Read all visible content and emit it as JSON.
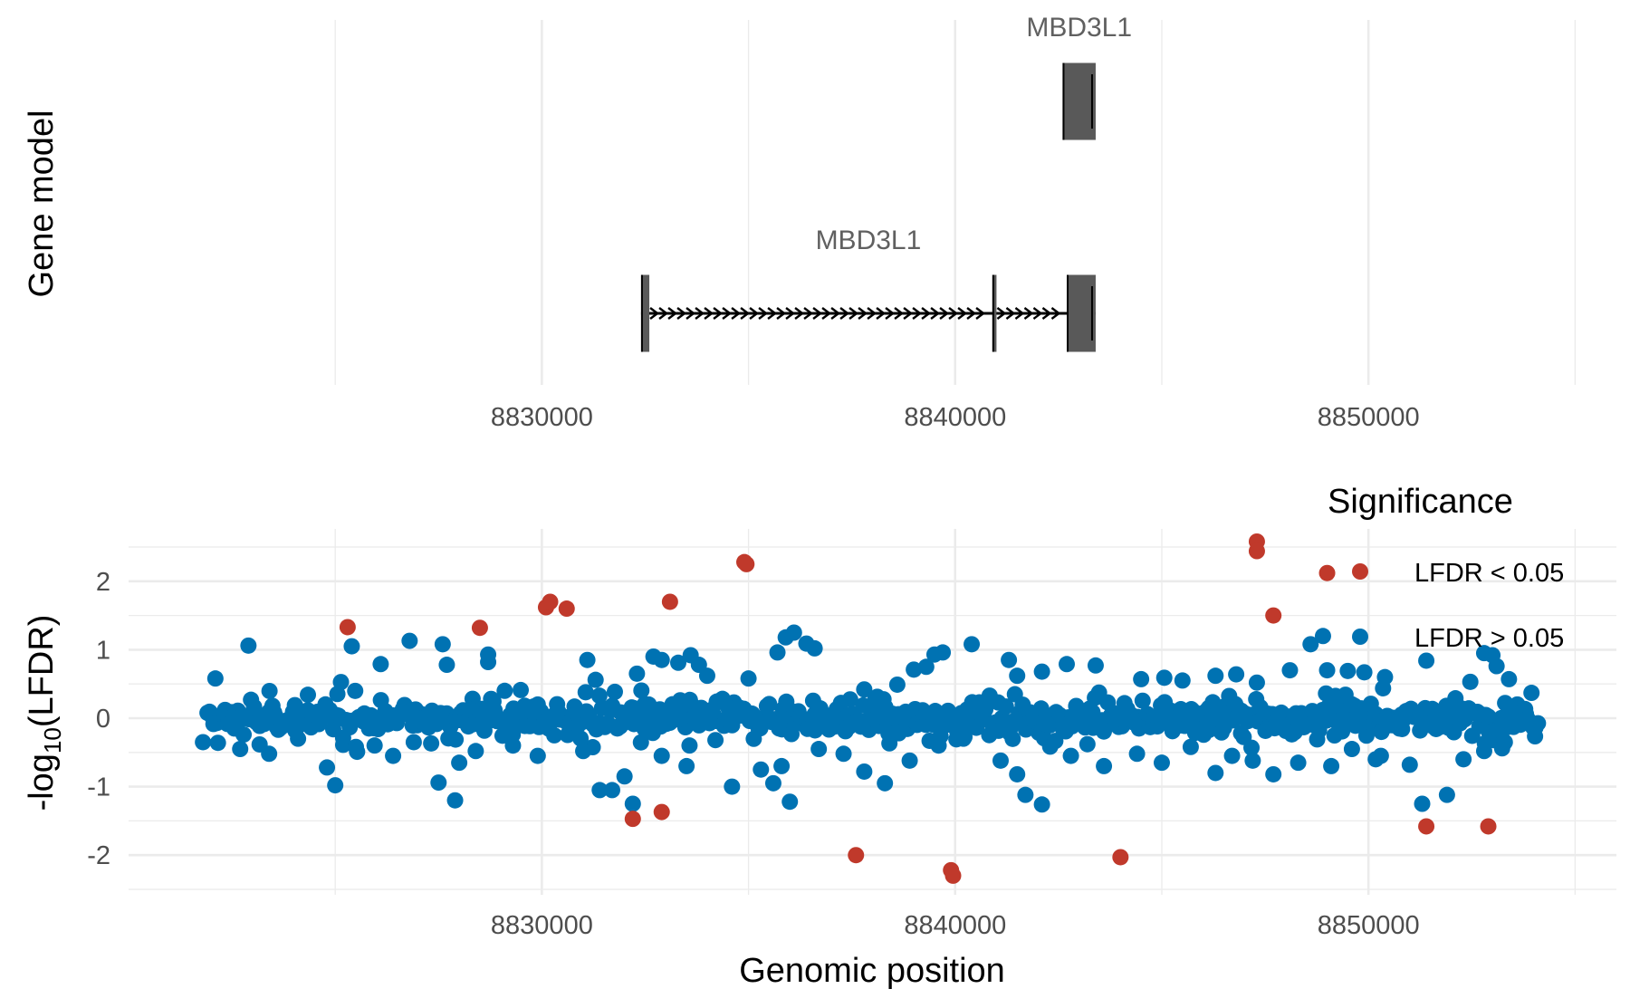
{
  "chart_data": [
    {
      "type": "gene-model",
      "ylabel": "Gene model",
      "xlim": [
        8820000,
        8856000
      ],
      "x_ticks": [
        8830000,
        8840000,
        8850000
      ],
      "x_tick_labels": [
        "8830000",
        "8840000",
        "8850000"
      ],
      "transcripts": [
        {
          "label": "MBD3L1",
          "track": 1,
          "strand": "+",
          "start": 8842600,
          "end": 8843400,
          "exons": [
            {
              "start": 8842600,
              "end": 8843400
            }
          ]
        },
        {
          "label": "MBD3L1",
          "track": 2,
          "strand": "+",
          "start": 8832400,
          "end": 8843400,
          "exons": [
            {
              "start": 8832400,
              "end": 8832600
            },
            {
              "start": 8840900,
              "end": 8841000
            },
            {
              "start": 8842700,
              "end": 8843400
            }
          ]
        }
      ],
      "colors": {
        "exon": "#595959",
        "intron": "#000000"
      }
    },
    {
      "type": "scatter",
      "xlabel": "Genomic position",
      "ylabel_main": "-log",
      "ylabel_sub": "10",
      "ylabel_tail": "(LFDR)",
      "xlim": [
        8820000,
        8856000
      ],
      "ylim": [
        -2.5,
        2.5
      ],
      "x_ticks": [
        8830000,
        8840000,
        8850000
      ],
      "x_tick_labels": [
        "8830000",
        "8840000",
        "8850000"
      ],
      "y_ticks": [
        -2,
        -1,
        0,
        1,
        2
      ],
      "y_tick_labels": [
        "-2",
        "-1",
        "0",
        "1",
        "2"
      ],
      "legend": {
        "title": "Significance",
        "position": "top-right",
        "entries": [
          {
            "label": "LFDR < 0.05",
            "color": "#C0392B"
          },
          {
            "label": "LFDR > 0.05",
            "color": "#0072B2"
          }
        ]
      },
      "series": [
        {
          "name": "LFDR < 0.05",
          "color": "#C0392B",
          "points": [
            [
              8825300,
              1.33
            ],
            [
              8828500,
              1.32
            ],
            [
              8830100,
              1.62
            ],
            [
              8830200,
              1.7
            ],
            [
              8830600,
              1.6
            ],
            [
              8833100,
              1.7
            ],
            [
              8834900,
              2.28
            ],
            [
              8834950,
              2.25
            ],
            [
              8847300,
              2.58
            ],
            [
              8847300,
              2.44
            ],
            [
              8847700,
              1.5
            ],
            [
              8849000,
              2.12
            ],
            [
              8832200,
              -1.47
            ],
            [
              8832900,
              -1.37
            ],
            [
              8837600,
              -2.0
            ],
            [
              8839900,
              -2.22
            ],
            [
              8839950,
              -2.3
            ],
            [
              8844000,
              -2.03
            ],
            [
              8851400,
              -1.58
            ],
            [
              8852900,
              -1.58
            ]
          ]
        },
        {
          "name": "LFDR > 0.05",
          "color": "#0072B2",
          "points": [
            [
              8822100,
              0.58
            ],
            [
              8822900,
              1.06
            ],
            [
              8825400,
              1.05
            ],
            [
              8826100,
              0.79
            ],
            [
              8826800,
              1.13
            ],
            [
              8827600,
              1.08
            ],
            [
              8827700,
              0.78
            ],
            [
              8828700,
              0.93
            ],
            [
              8828700,
              0.82
            ],
            [
              8829100,
              0.4
            ],
            [
              8829900,
              0.2
            ],
            [
              8831100,
              0.85
            ],
            [
              8831300,
              0.56
            ],
            [
              8832300,
              0.65
            ],
            [
              8832700,
              0.9
            ],
            [
              8832900,
              0.85
            ],
            [
              8833300,
              0.81
            ],
            [
              8833600,
              0.92
            ],
            [
              8833800,
              0.78
            ],
            [
              8834000,
              0.62
            ],
            [
              8835000,
              0.58
            ],
            [
              8835700,
              0.96
            ],
            [
              8835900,
              1.18
            ],
            [
              8836100,
              1.25
            ],
            [
              8836400,
              1.09
            ],
            [
              8836600,
              1.02
            ],
            [
              8837800,
              0.42
            ],
            [
              8838600,
              0.49
            ],
            [
              8839000,
              0.71
            ],
            [
              8839300,
              0.75
            ],
            [
              8839500,
              0.93
            ],
            [
              8839700,
              0.96
            ],
            [
              8840400,
              1.08
            ],
            [
              8841300,
              0.85
            ],
            [
              8841500,
              0.62
            ],
            [
              8842100,
              0.68
            ],
            [
              8842700,
              0.79
            ],
            [
              8843400,
              0.77
            ],
            [
              8844500,
              0.57
            ],
            [
              8845500,
              0.55
            ],
            [
              8846300,
              0.62
            ],
            [
              8846800,
              0.64
            ],
            [
              8847300,
              0.52
            ],
            [
              8848100,
              0.7
            ],
            [
              8848600,
              1.08
            ],
            [
              8848900,
              1.2
            ],
            [
              8849000,
              0.7
            ],
            [
              8849500,
              0.69
            ],
            [
              8849900,
              0.67
            ],
            [
              8850400,
              0.6
            ],
            [
              8851400,
              0.84
            ],
            [
              8852800,
              0.95
            ],
            [
              8853000,
              0.92
            ],
            [
              8853100,
              0.76
            ],
            [
              8853400,
              0.57
            ],
            [
              8821800,
              -0.35
            ],
            [
              8822700,
              -0.45
            ],
            [
              8823400,
              -0.52
            ],
            [
              8824100,
              -0.3
            ],
            [
              8824800,
              -0.72
            ],
            [
              8825000,
              -0.98
            ],
            [
              8825500,
              -0.42
            ],
            [
              8826400,
              -0.55
            ],
            [
              8826900,
              -0.35
            ],
            [
              8827500,
              -0.94
            ],
            [
              8827900,
              -1.2
            ],
            [
              8828000,
              -0.65
            ],
            [
              8828400,
              -0.48
            ],
            [
              8829300,
              -0.4
            ],
            [
              8829900,
              -0.55
            ],
            [
              8830300,
              -0.25
            ],
            [
              8831000,
              -0.48
            ],
            [
              8831400,
              -1.05
            ],
            [
              8831700,
              -1.05
            ],
            [
              8832000,
              -0.85
            ],
            [
              8832200,
              -1.25
            ],
            [
              8832900,
              -0.55
            ],
            [
              8833500,
              -0.7
            ],
            [
              8834200,
              -0.32
            ],
            [
              8834600,
              -1.0
            ],
            [
              8835300,
              -0.75
            ],
            [
              8835600,
              -0.95
            ],
            [
              8835800,
              -0.7
            ],
            [
              8836000,
              -1.22
            ],
            [
              8836700,
              -0.45
            ],
            [
              8837300,
              -0.52
            ],
            [
              8837800,
              -0.78
            ],
            [
              8838300,
              -0.95
            ],
            [
              8838900,
              -0.62
            ],
            [
              8839600,
              -0.4
            ],
            [
              8840200,
              -0.3
            ],
            [
              8841100,
              -0.62
            ],
            [
              8841500,
              -0.82
            ],
            [
              8841700,
              -1.12
            ],
            [
              8842100,
              -1.26
            ],
            [
              8842800,
              -0.55
            ],
            [
              8843200,
              -0.38
            ],
            [
              8843600,
              -0.7
            ],
            [
              8844400,
              -0.52
            ],
            [
              8845000,
              -0.65
            ],
            [
              8845700,
              -0.42
            ],
            [
              8846300,
              -0.8
            ],
            [
              8846700,
              -0.55
            ],
            [
              8847200,
              -0.62
            ],
            [
              8847700,
              -0.82
            ],
            [
              8848300,
              -0.65
            ],
            [
              8849100,
              -0.7
            ],
            [
              8849600,
              -0.45
            ],
            [
              8850300,
              -0.55
            ],
            [
              8851000,
              -0.68
            ],
            [
              8851300,
              -1.25
            ],
            [
              8851900,
              -1.12
            ],
            [
              8852300,
              -0.6
            ],
            [
              8852800,
              -0.48
            ],
            [
              8853300,
              -0.35
            ]
          ]
        }
      ]
    }
  ]
}
